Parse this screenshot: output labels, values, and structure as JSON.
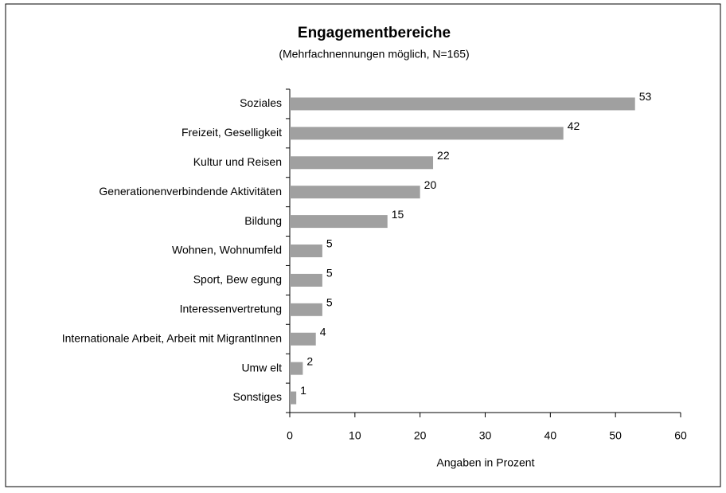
{
  "chart_data": {
    "type": "barh",
    "title": "Engagementbereiche",
    "subtitle": "(Mehrfachnennungen möglich, N=165)",
    "x_label": "Angaben in Prozent",
    "categories": [
      "Soziales",
      "Freizeit, Geselligkeit",
      "Kultur und Reisen",
      "Generationenverbindende Aktivitäten",
      "Bildung",
      "Wohnen, Wohnumfeld",
      "Sport, Bew egung",
      "Interessenvertretung",
      "Internationale Arbeit, Arbeit mit MigrantInnen",
      "Umw elt",
      "Sonstiges"
    ],
    "values": [
      53,
      42,
      22,
      20,
      15,
      5,
      5,
      5,
      4,
      2,
      1
    ],
    "color": "#a0a0a0",
    "xlim": [
      0,
      60
    ],
    "xticks": [
      0,
      10,
      20,
      30,
      40,
      50,
      60
    ]
  }
}
